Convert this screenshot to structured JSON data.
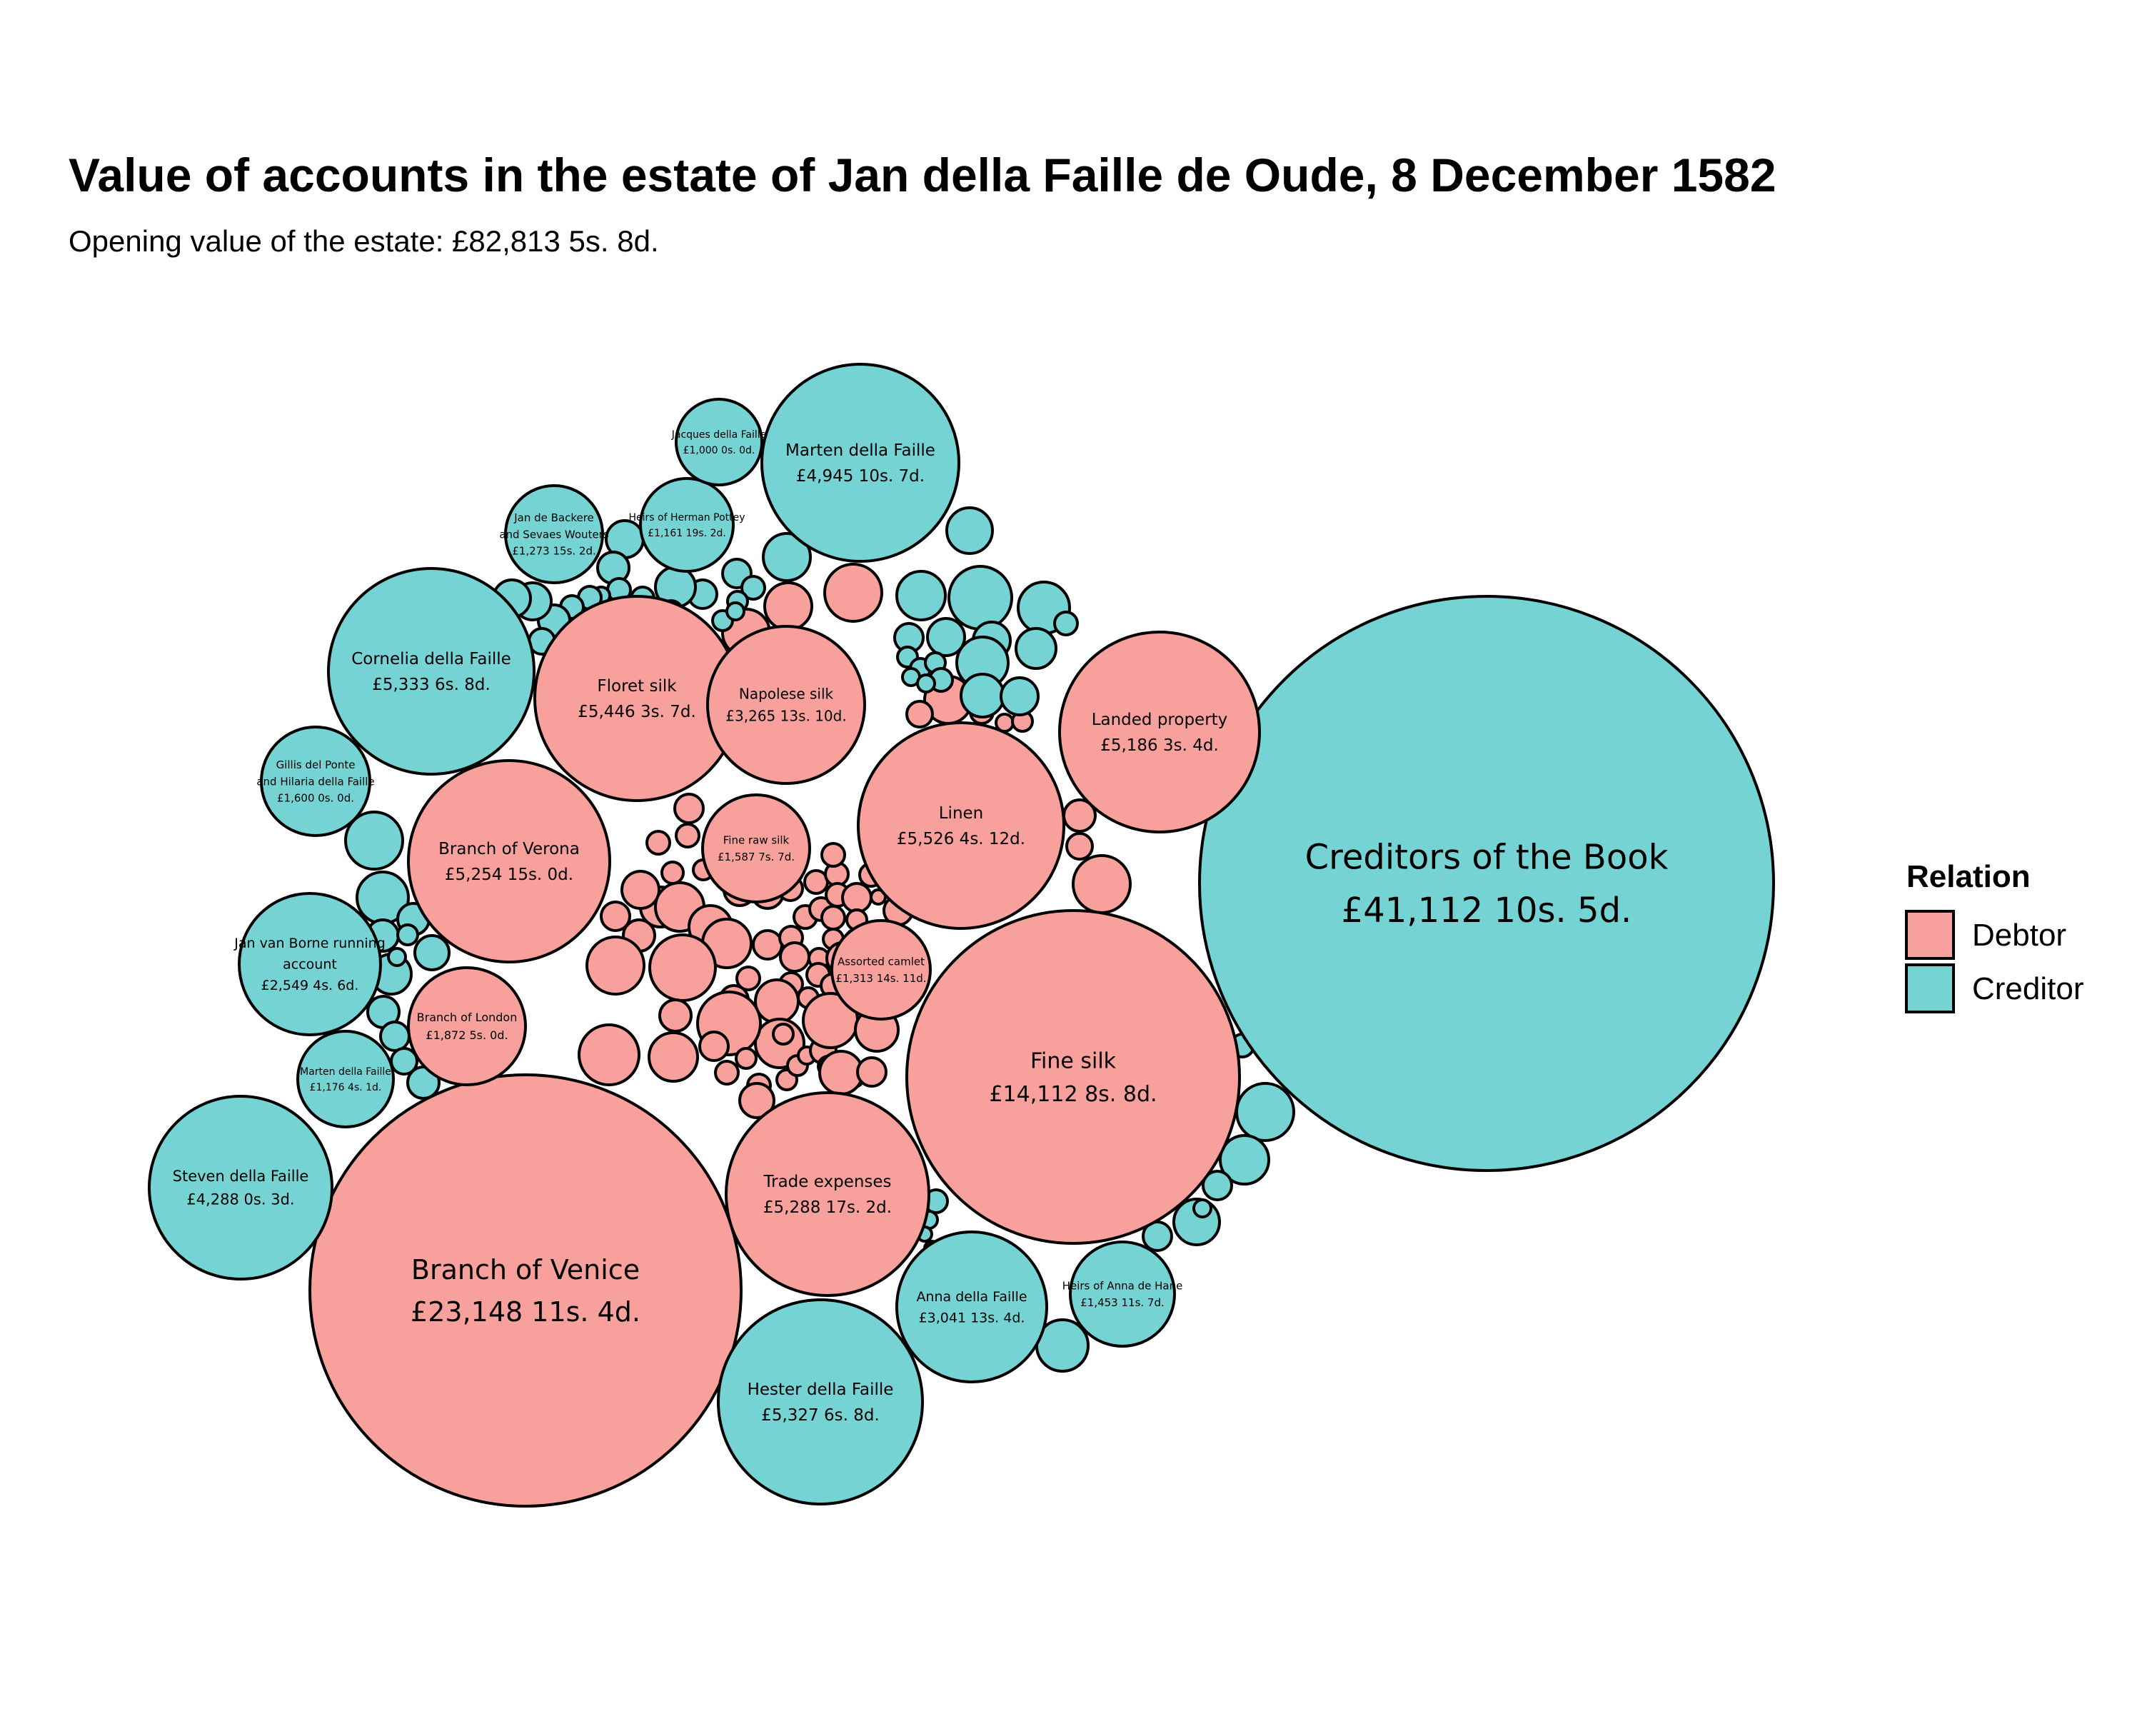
{
  "chart_data": {
    "type": "bubble-pack",
    "title": "Value of accounts in the estate of Jan della Faille de Oude, 8 December 1582",
    "subtitle": "Opening value of the estate: £82,813 5s. 8d.",
    "legend": {
      "title": "Relation",
      "placement": "right",
      "entries": [
        {
          "name": "Debtor",
          "color": "#F8A19C"
        },
        {
          "name": "Creditor",
          "color": "#76D3D4"
        }
      ]
    },
    "labeled_accounts": [
      {
        "name": "Creditors of the Book",
        "value": "£41,112 10s. 5d.",
        "relation": "Creditor"
      },
      {
        "name": "Branch of Venice",
        "value": "£23,148 11s. 4d.",
        "relation": "Debtor"
      },
      {
        "name": "Fine silk",
        "value": "£14,112 8s. 8d.",
        "relation": "Debtor"
      },
      {
        "name": "Linen",
        "value": "£5,526 4s. 12d.",
        "relation": "Debtor"
      },
      {
        "name": "Floret silk",
        "value": "£5,446 3s. 7d.",
        "relation": "Debtor"
      },
      {
        "name": "Cornelia della Faille",
        "value": "£5,333 6s. 8d.",
        "relation": "Creditor"
      },
      {
        "name": "Hester della Faille",
        "value": "£5,327 6s. 8d.",
        "relation": "Creditor"
      },
      {
        "name": "Trade expenses",
        "value": "£5,288 17s. 2d.",
        "relation": "Debtor"
      },
      {
        "name": "Branch of Verona",
        "value": "£5,254 15s. 0d.",
        "relation": "Debtor"
      },
      {
        "name": "Landed property",
        "value": "£5,186 3s. 4d.",
        "relation": "Debtor"
      },
      {
        "name": "Marten della Faille",
        "value": "£4,945 10s. 7d.",
        "relation": "Creditor"
      },
      {
        "name": "Steven della Faille",
        "value": "£4,288 0s. 3d.",
        "relation": "Creditor"
      },
      {
        "name": "Napolese silk",
        "value": "£3,265 13s. 10d.",
        "relation": "Debtor"
      },
      {
        "name": "Anna della Faille",
        "value": "£3,041 13s. 4d.",
        "relation": "Creditor"
      },
      {
        "name": "Jan van Borne running account",
        "value": "£2,549 4s. 6d.",
        "relation": "Creditor"
      },
      {
        "name": "Branch of London",
        "value": "£1,872 5s. 0d.",
        "relation": "Debtor"
      },
      {
        "name": "Gillis del Ponte and Hilaria della Faille",
        "value": "£1,600 0s. 0d.",
        "relation": "Creditor"
      },
      {
        "name": "Fine raw silk",
        "value": "£1,587 7s. 7d.",
        "relation": "Debtor"
      },
      {
        "name": "Heirs of Anna de Hane",
        "value": "£1,453 11s. 7d.",
        "relation": "Creditor"
      },
      {
        "name": "Assorted camlet",
        "value": "£1,313 14s. 11d.",
        "relation": "Debtor"
      },
      {
        "name": "Jan de Backere and Sevaes Wouters",
        "value": "£1,273 15s. 2d.",
        "relation": "Creditor"
      },
      {
        "name": "Marten della Faille",
        "value": "£1,176 4s. 1d.",
        "relation": "Creditor"
      },
      {
        "name": "Heirs of Herman Pottey",
        "value": "£1,161 19s. 2d.",
        "relation": "Creditor"
      },
      {
        "name": "Jacques della Faille",
        "value": "£1,000 0s. 0d.",
        "relation": "Creditor"
      }
    ]
  }
}
